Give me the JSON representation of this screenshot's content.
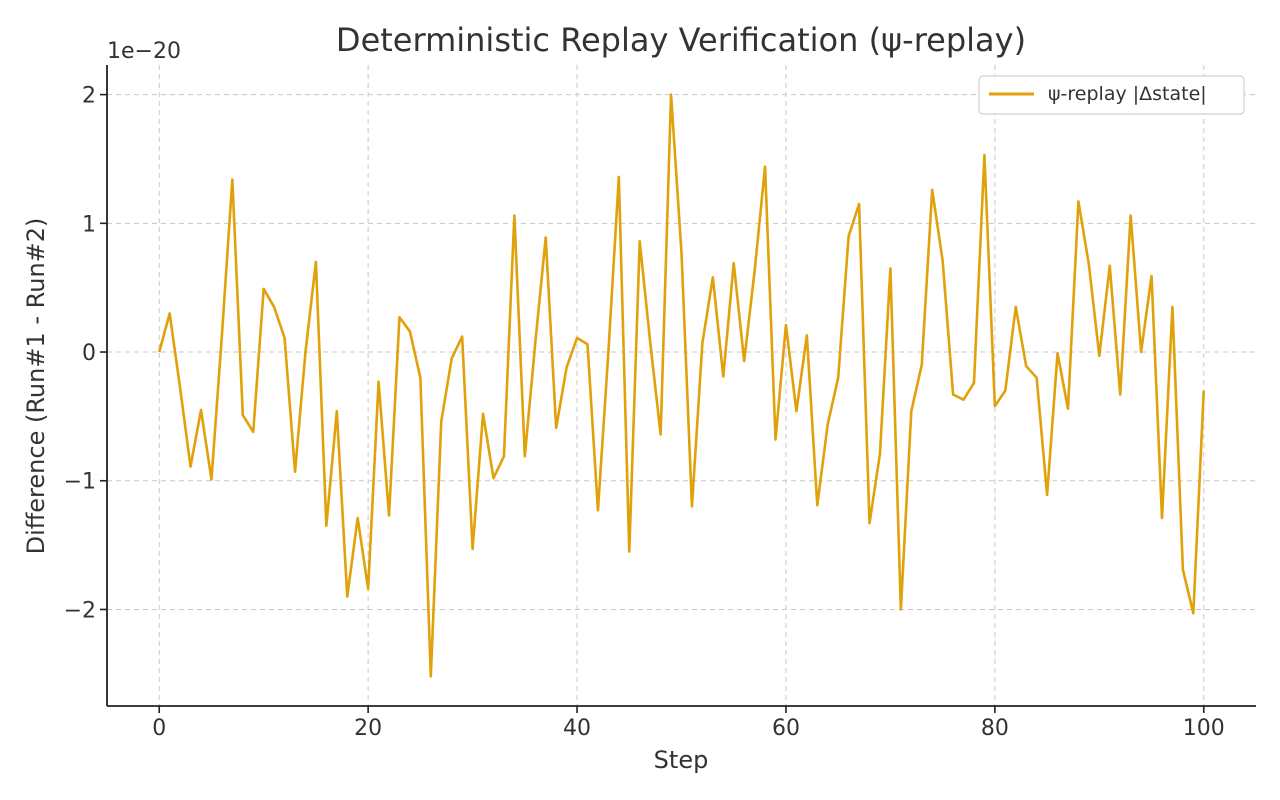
{
  "chart_data": {
    "type": "line",
    "title": "Deterministic Replay Verification (ψ-replay)",
    "xlabel": "Step",
    "ylabel": "Difference (Run#1 - Run#2)",
    "offset_label": "1e−20",
    "xlim": [
      -5,
      105
    ],
    "ylim": [
      -2.75,
      2.23
    ],
    "x_ticks": [
      0,
      20,
      40,
      60,
      80,
      100
    ],
    "x_tick_labels": [
      "0",
      "20",
      "40",
      "60",
      "80",
      "100"
    ],
    "y_ticks": [
      -2,
      -1,
      0,
      1,
      2
    ],
    "y_tick_labels": [
      "−2",
      "−1",
      "0",
      "1",
      "2"
    ],
    "grid": true,
    "legend_position": "top-right",
    "series": [
      {
        "name": "ψ-replay |Δstate|",
        "color": "#e0a10b",
        "x": [
          0,
          1,
          2,
          3,
          4,
          5,
          6,
          7,
          8,
          9,
          10,
          11,
          12,
          13,
          14,
          15,
          16,
          17,
          18,
          19,
          20,
          21,
          22,
          23,
          24,
          25,
          26,
          27,
          28,
          29,
          30,
          31,
          32,
          33,
          34,
          35,
          36,
          37,
          38,
          39,
          40,
          41,
          42,
          43,
          44,
          45,
          46,
          47,
          48,
          49,
          50,
          51,
          52,
          53,
          54,
          55,
          56,
          57,
          58,
          59,
          60,
          61,
          62,
          63,
          64,
          65,
          66,
          67,
          68,
          69,
          70,
          71,
          72,
          73,
          74,
          75,
          76,
          77,
          78,
          79,
          80,
          81,
          82,
          83,
          84,
          85,
          86,
          87,
          88,
          89,
          90,
          91,
          92,
          93,
          94,
          95,
          96,
          97,
          98,
          99,
          100
        ],
        "values": [
          0.0,
          0.3,
          -0.28,
          -0.89,
          -0.45,
          -0.99,
          0.13,
          1.34,
          -0.49,
          -0.62,
          0.49,
          0.35,
          0.11,
          -0.93,
          0.0,
          0.7,
          -1.35,
          -0.46,
          -1.9,
          -1.29,
          -1.84,
          -0.23,
          -1.27,
          0.27,
          0.16,
          -0.2,
          -2.52,
          -0.54,
          -0.05,
          0.12,
          -1.53,
          -0.48,
          -0.98,
          -0.81,
          1.06,
          -0.81,
          0.07,
          0.89,
          -0.59,
          -0.12,
          0.11,
          0.06,
          -1.23,
          0.0,
          1.36,
          -1.55,
          0.86,
          0.08,
          -0.64,
          2.0,
          0.77,
          -1.2,
          0.07,
          0.58,
          -0.19,
          0.69,
          -0.07,
          0.63,
          1.44,
          -0.68,
          0.21,
          -0.46,
          0.13,
          -1.19,
          -0.56,
          -0.2,
          0.9,
          1.15,
          -1.33,
          -0.79,
          0.65,
          -2.0,
          -0.46,
          -0.1,
          1.26,
          0.71,
          -0.33,
          -0.37,
          -0.24,
          1.53,
          -0.42,
          -0.3,
          0.35,
          -0.11,
          -0.2,
          -1.11,
          -0.01,
          -0.44,
          1.17,
          0.68,
          -0.03,
          0.67,
          -0.33,
          1.06,
          0.0,
          0.59,
          -1.29,
          0.35,
          -1.69,
          -2.03,
          -0.3
        ]
      }
    ]
  }
}
